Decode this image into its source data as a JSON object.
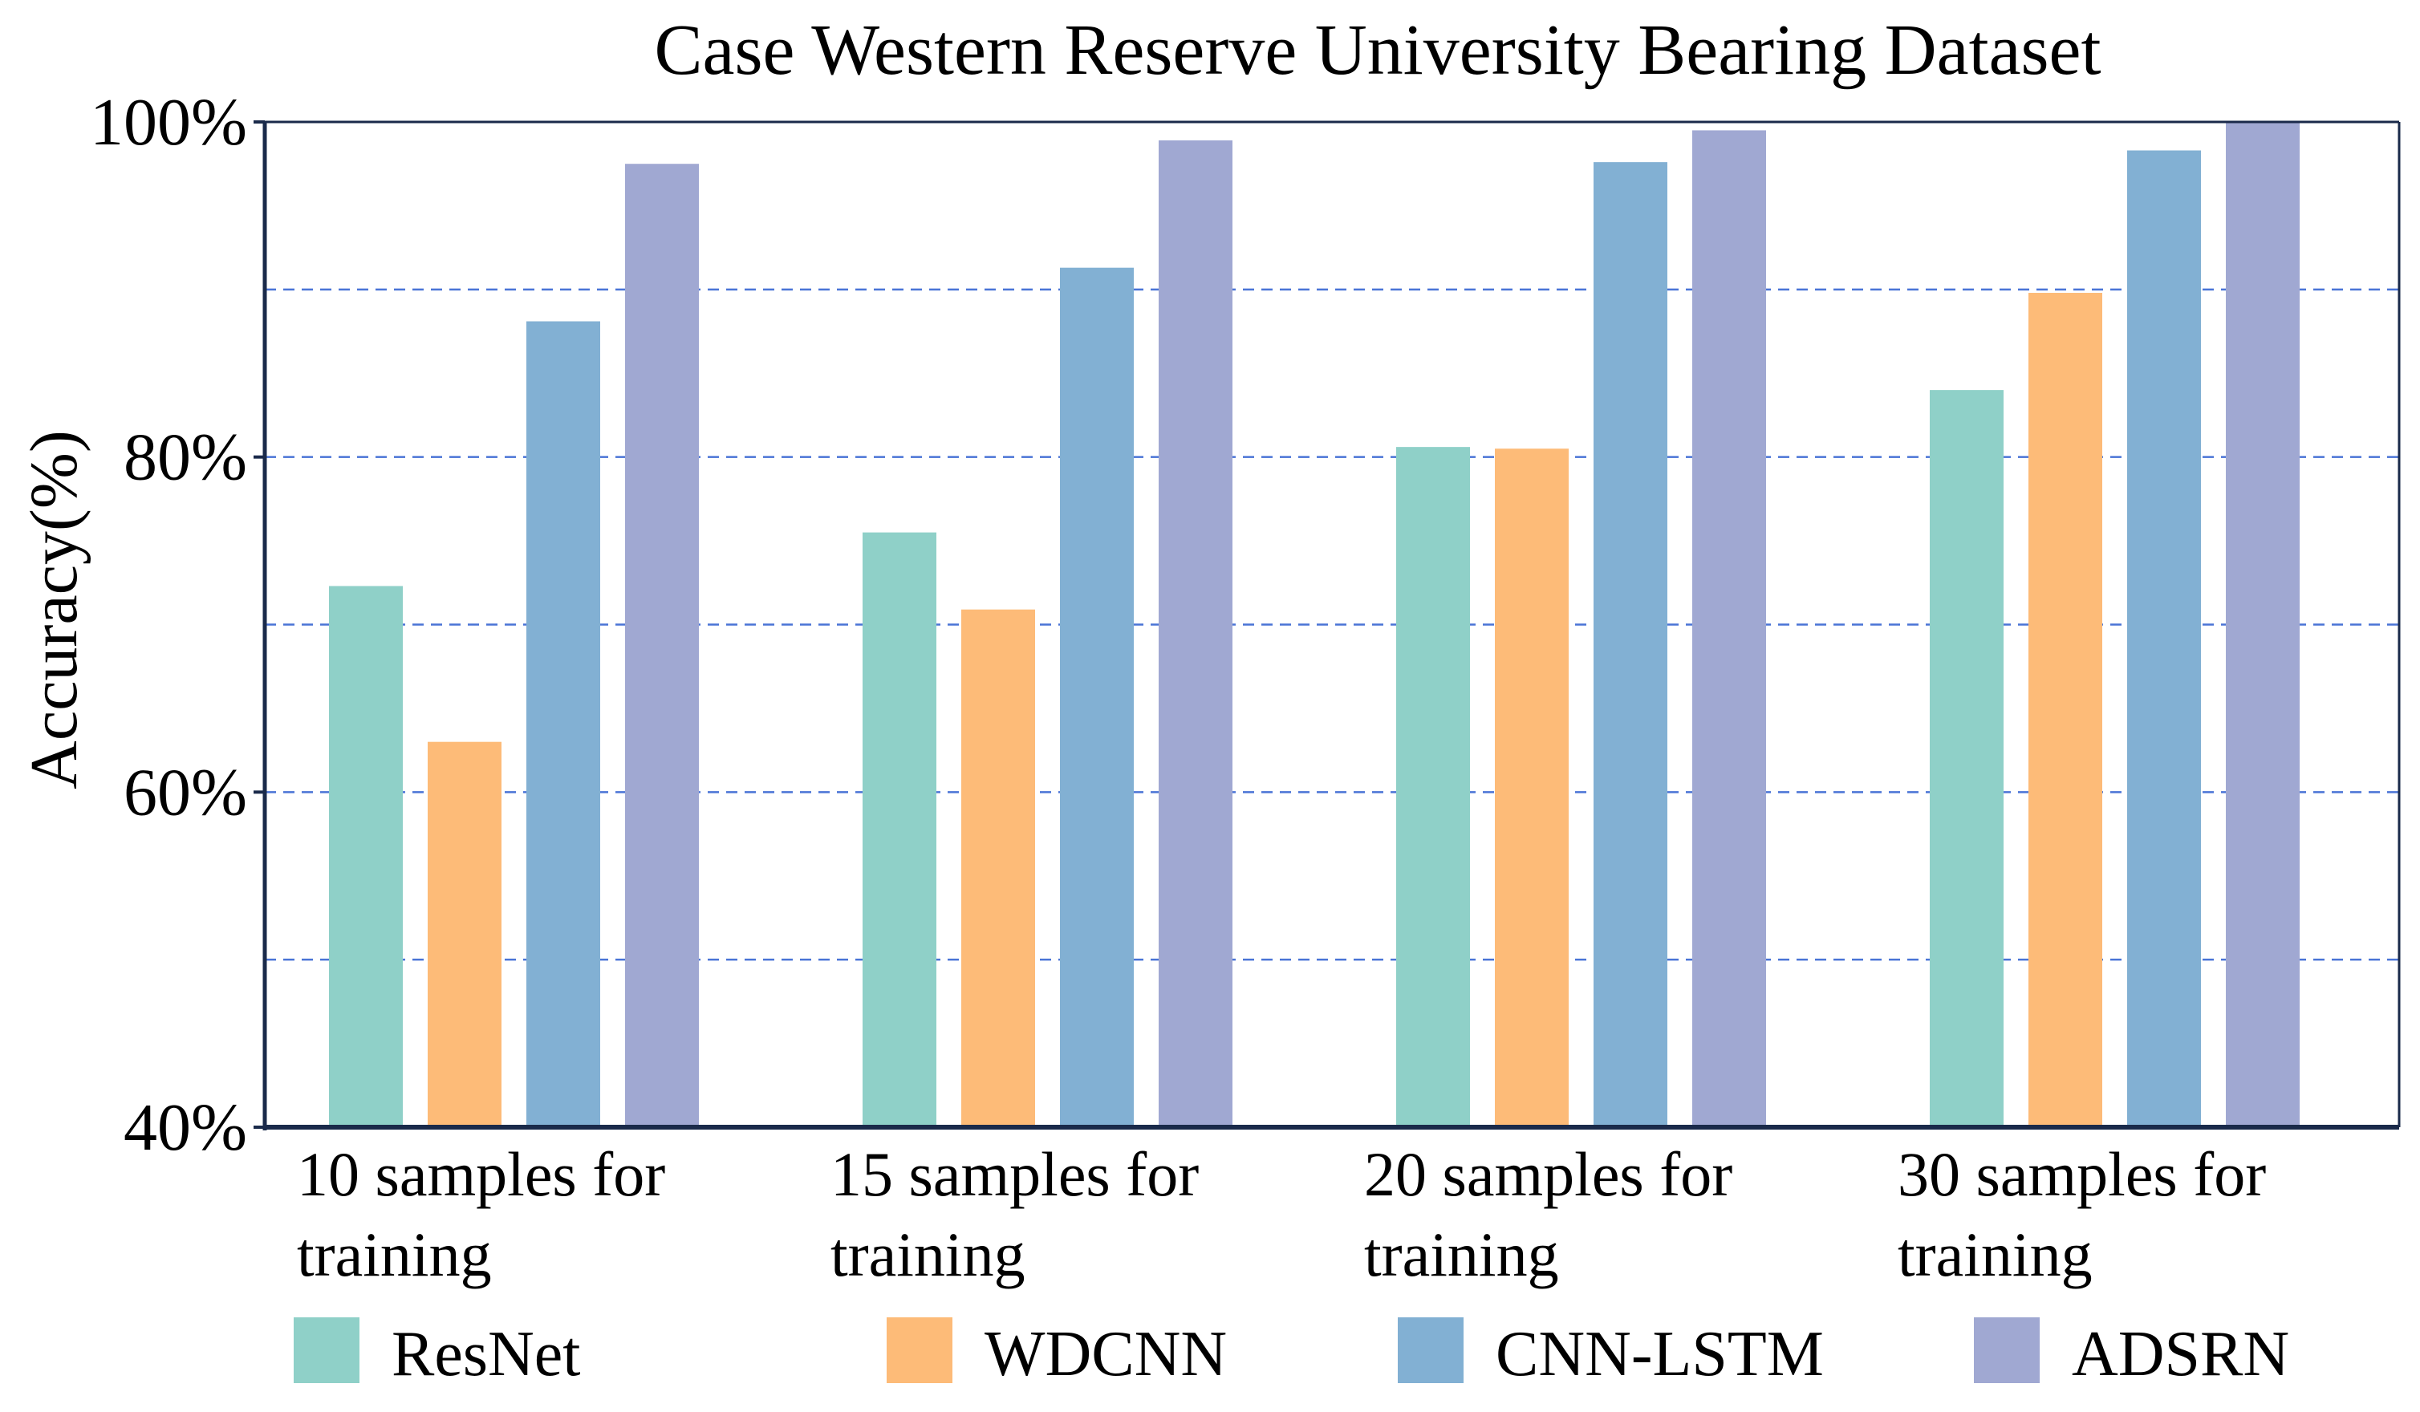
{
  "chart_data": {
    "type": "bar",
    "title": "Case Western Reserve University Bearing Dataset",
    "xlabel": "",
    "ylabel": "Accuracy(%)",
    "ylim": [
      40,
      100
    ],
    "y_ticks": [
      {
        "value": 40,
        "label": "40%"
      },
      {
        "value": 60,
        "label": "60%"
      },
      {
        "value": 80,
        "label": "80%"
      },
      {
        "value": 100,
        "label": "100%"
      }
    ],
    "grid_values": [
      50,
      60,
      70,
      80,
      90
    ],
    "grid": "horizontal dashed",
    "legend_position": "bottom",
    "categories": [
      [
        "10 samples for",
        "training"
      ],
      [
        "15 samples for",
        "training"
      ],
      [
        "20 samples for",
        "training"
      ],
      [
        "30 samples for",
        "training"
      ]
    ],
    "series": [
      {
        "name": "ResNet",
        "color": "#8fd0c8",
        "values": [
          72.3,
          75.5,
          80.6,
          84.0
        ]
      },
      {
        "name": "WDCNN",
        "color": "#fdbb78",
        "values": [
          63.0,
          70.9,
          80.5,
          89.8
        ]
      },
      {
        "name": "CNN-LSTM",
        "color": "#82b0d3",
        "values": [
          88.1,
          91.3,
          97.6,
          98.3
        ]
      },
      {
        "name": "ADSRN",
        "color": "#a0a8d2",
        "values": [
          97.5,
          98.9,
          99.5,
          100.0
        ]
      }
    ],
    "grid_color": "#4a74d6",
    "axis_color": "#1a2a4a"
  }
}
